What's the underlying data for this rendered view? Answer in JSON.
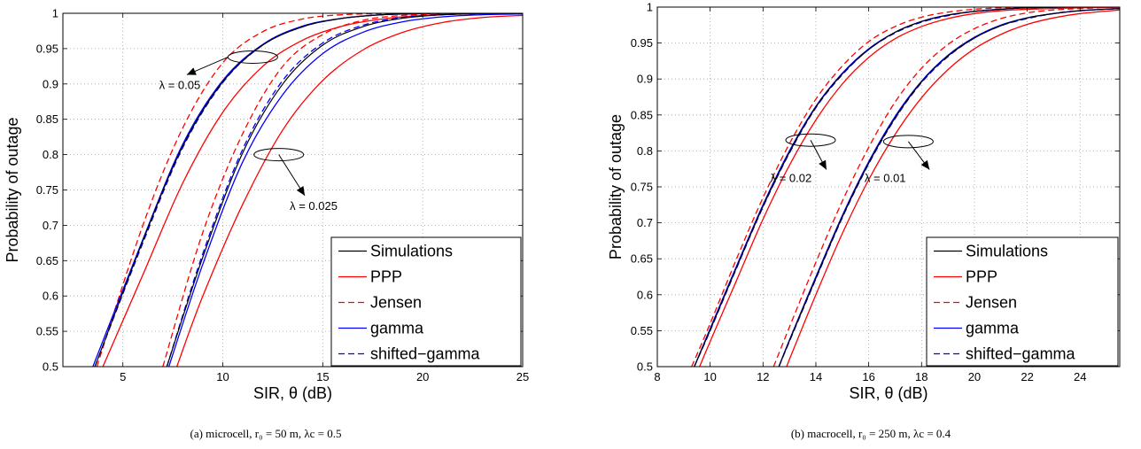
{
  "chart_data": [
    {
      "type": "line",
      "caption": "(a) microcell, r₀ = 50 m, λc = 0.5",
      "xlabel": "SIR, θ (dB)",
      "ylabel": "Probability of outage",
      "xlim": [
        2,
        25
      ],
      "ylim": [
        0.5,
        1
      ],
      "xticks": [
        5,
        10,
        15,
        20,
        25
      ],
      "yticks": [
        0.5,
        0.55,
        0.6,
        0.65,
        0.7,
        0.75,
        0.8,
        0.85,
        0.9,
        0.95,
        1
      ],
      "grid": true,
      "legend": {
        "position": "bottom-right",
        "entries": [
          {
            "label": "Simulations",
            "color": "#000000",
            "dash": "solid"
          },
          {
            "label": "PPP",
            "color": "#ff0000",
            "dash": "solid"
          },
          {
            "label": "Jensen",
            "color": "#ff0000",
            "dash": "dashed"
          },
          {
            "label": "gamma",
            "color": "#0000ff",
            "dash": "solid"
          },
          {
            "label": "shifted−gamma",
            "color": "#0000ff",
            "dash": "dashed"
          }
        ]
      },
      "annotations": [
        {
          "text": "λ = 0.05",
          "ellipse": [
            11.5,
            0.938
          ],
          "arrow_to": [
            8.2,
            0.913
          ]
        },
        {
          "text": "λ = 0.025",
          "ellipse": [
            12.8,
            0.8
          ],
          "arrow_to": [
            14.1,
            0.742
          ]
        }
      ],
      "series": [
        {
          "group": "λ = 0.05",
          "legend": "Jensen",
          "color": "#ff0000",
          "dash": "dashed",
          "width": 1.3,
          "x": [
            3.7,
            6,
            8,
            10,
            12,
            14,
            16,
            18,
            20,
            22,
            24,
            25
          ],
          "y": [
            0.5,
            0.7,
            0.838,
            0.93,
            0.974,
            0.992,
            0.998,
            0.9995,
            1,
            1,
            1,
            1
          ]
        },
        {
          "group": "λ = 0.05",
          "legend": "gamma",
          "color": "#0000ff",
          "dash": "solid",
          "width": 1.3,
          "x": [
            3.5,
            6,
            8,
            10,
            12,
            14,
            16,
            18,
            20,
            22,
            24,
            25
          ],
          "y": [
            0.5,
            0.68,
            0.815,
            0.905,
            0.956,
            0.982,
            0.993,
            0.998,
            0.9995,
            1,
            1,
            1
          ]
        },
        {
          "group": "λ = 0.05",
          "legend": "shifted−gamma",
          "color": "#0000ff",
          "dash": "dashed",
          "width": 1.3,
          "x": [
            3.6,
            6,
            8,
            10,
            12,
            14,
            16,
            18,
            20,
            22,
            24,
            25
          ],
          "y": [
            0.5,
            0.675,
            0.81,
            0.902,
            0.955,
            0.981,
            0.993,
            0.998,
            0.9995,
            1,
            1,
            1
          ]
        },
        {
          "group": "λ = 0.05",
          "legend": "Simulations",
          "color": "#000000",
          "dash": "solid",
          "width": 1.2,
          "x": [
            3.6,
            6,
            8,
            10,
            12,
            14,
            16,
            18,
            20,
            22,
            24,
            25
          ],
          "y": [
            0.5,
            0.678,
            0.812,
            0.903,
            0.955,
            0.981,
            0.993,
            0.998,
            0.9995,
            1,
            1,
            1
          ]
        },
        {
          "group": "λ = 0.05",
          "legend": "PPP",
          "color": "#ff0000",
          "dash": "solid",
          "width": 1.3,
          "x": [
            4.0,
            6,
            8,
            10,
            12,
            14,
            16,
            18,
            20,
            22,
            24,
            25
          ],
          "y": [
            0.5,
            0.63,
            0.76,
            0.86,
            0.925,
            0.962,
            0.982,
            0.992,
            0.997,
            0.999,
            1,
            1
          ]
        },
        {
          "group": "λ = 0.025",
          "legend": "Jensen",
          "color": "#ff0000",
          "dash": "dashed",
          "width": 1.3,
          "x": [
            7.0,
            9,
            11,
            13,
            15,
            17,
            19,
            21,
            23,
            25
          ],
          "y": [
            0.5,
            0.69,
            0.83,
            0.925,
            0.97,
            0.99,
            0.997,
            0.999,
            1,
            1
          ]
        },
        {
          "group": "λ = 0.025",
          "legend": "gamma",
          "color": "#0000ff",
          "dash": "solid",
          "width": 1.3,
          "x": [
            7.3,
            9,
            11,
            13,
            15,
            17,
            19,
            21,
            23,
            25
          ],
          "y": [
            0.5,
            0.645,
            0.79,
            0.885,
            0.943,
            0.973,
            0.988,
            0.995,
            0.998,
            0.999
          ]
        },
        {
          "group": "λ = 0.025",
          "legend": "shifted−gamma",
          "color": "#0000ff",
          "dash": "dashed",
          "width": 1.3,
          "x": [
            7.2,
            9,
            11,
            13,
            15,
            17,
            19,
            21,
            23,
            25
          ],
          "y": [
            0.5,
            0.66,
            0.808,
            0.905,
            0.958,
            0.983,
            0.994,
            0.998,
            0.9995,
            1
          ]
        },
        {
          "group": "λ = 0.025",
          "legend": "Simulations",
          "color": "#000000",
          "dash": "solid",
          "width": 1.2,
          "x": [
            7.2,
            9,
            11,
            13,
            15,
            17,
            19,
            21,
            23,
            25
          ],
          "y": [
            0.5,
            0.655,
            0.803,
            0.9,
            0.955,
            0.981,
            0.993,
            0.998,
            0.9995,
            1
          ]
        },
        {
          "group": "λ = 0.025",
          "legend": "PPP",
          "color": "#ff0000",
          "dash": "solid",
          "width": 1.3,
          "x": [
            7.7,
            9,
            11,
            13,
            15,
            17,
            19,
            21,
            23,
            25
          ],
          "y": [
            0.5,
            0.6,
            0.73,
            0.835,
            0.905,
            0.948,
            0.973,
            0.987,
            0.994,
            0.997
          ]
        }
      ]
    },
    {
      "type": "line",
      "caption": "(b) macrocell, r₀ = 250 m, λc = 0.4",
      "xlabel": "SIR, θ (dB)",
      "ylabel": "Probability of outage",
      "xlim": [
        8,
        25.5
      ],
      "ylim": [
        0.5,
        1
      ],
      "xticks": [
        8,
        10,
        12,
        14,
        16,
        18,
        20,
        22,
        24
      ],
      "yticks": [
        0.5,
        0.55,
        0.6,
        0.65,
        0.7,
        0.75,
        0.8,
        0.85,
        0.9,
        0.95,
        1
      ],
      "grid": true,
      "legend": {
        "position": "bottom-right",
        "entries": [
          {
            "label": "Simulations",
            "color": "#000000",
            "dash": "solid"
          },
          {
            "label": "PPP",
            "color": "#ff0000",
            "dash": "solid"
          },
          {
            "label": "Jensen",
            "color": "#ff0000",
            "dash": "dashed"
          },
          {
            "label": "gamma",
            "color": "#0000ff",
            "dash": "solid"
          },
          {
            "label": "shifted−gamma",
            "color": "#0000ff",
            "dash": "dashed"
          }
        ]
      },
      "annotations": [
        {
          "text": "λ = 0.02",
          "ellipse": [
            13.8,
            0.815
          ],
          "arrow_to": [
            14.4,
            0.774
          ]
        },
        {
          "text": "λ = 0.01",
          "ellipse": [
            17.5,
            0.813
          ],
          "arrow_to": [
            18.3,
            0.774
          ]
        }
      ],
      "series": [
        {
          "group": "λ = 0.02",
          "legend": "Jensen",
          "color": "#ff0000",
          "dash": "dashed",
          "width": 1.3,
          "x": [
            9.3,
            10,
            11,
            12,
            13,
            14,
            15,
            16,
            17,
            18,
            19,
            20,
            21,
            22,
            24,
            25.5
          ],
          "y": [
            0.5,
            0.56,
            0.65,
            0.735,
            0.81,
            0.872,
            0.918,
            0.952,
            0.973,
            0.986,
            0.993,
            0.997,
            0.999,
            1,
            1,
            1
          ]
        },
        {
          "group": "λ = 0.02",
          "legend": "gamma",
          "color": "#0000ff",
          "dash": "solid",
          "width": 1.3,
          "x": [
            9.4,
            10,
            11,
            12,
            13,
            14,
            15,
            16,
            17,
            18,
            19,
            20,
            21,
            22,
            24,
            25.5
          ],
          "y": [
            0.5,
            0.553,
            0.64,
            0.725,
            0.8,
            0.862,
            0.908,
            0.942,
            0.965,
            0.98,
            0.989,
            0.994,
            0.997,
            0.999,
            1,
            1
          ]
        },
        {
          "group": "λ = 0.02",
          "legend": "shifted−gamma",
          "color": "#0000ff",
          "dash": "dashed",
          "width": 1.3,
          "x": [
            9.4,
            10,
            11,
            12,
            13,
            14,
            15,
            16,
            17,
            18,
            19,
            20,
            21,
            22,
            24,
            25.5
          ],
          "y": [
            0.5,
            0.55,
            0.637,
            0.722,
            0.797,
            0.86,
            0.906,
            0.941,
            0.964,
            0.979,
            0.988,
            0.994,
            0.997,
            0.999,
            1,
            1
          ]
        },
        {
          "group": "λ = 0.02",
          "legend": "Simulations",
          "color": "#000000",
          "dash": "solid",
          "width": 1.2,
          "x": [
            9.4,
            10,
            11,
            12,
            13,
            14,
            15,
            16,
            17,
            18,
            19,
            20,
            21,
            22,
            24,
            25.5
          ],
          "y": [
            0.5,
            0.551,
            0.638,
            0.723,
            0.798,
            0.861,
            0.907,
            0.941,
            0.965,
            0.98,
            0.989,
            0.994,
            0.997,
            0.999,
            1,
            1
          ]
        },
        {
          "group": "λ = 0.02",
          "legend": "PPP",
          "color": "#ff0000",
          "dash": "solid",
          "width": 1.3,
          "x": [
            9.6,
            10,
            11,
            12,
            13,
            14,
            15,
            16,
            17,
            18,
            19,
            20,
            21,
            22,
            24,
            25.5
          ],
          "y": [
            0.5,
            0.535,
            0.62,
            0.705,
            0.78,
            0.843,
            0.893,
            0.93,
            0.956,
            0.973,
            0.984,
            0.991,
            0.995,
            0.997,
            0.999,
            1
          ]
        },
        {
          "group": "λ = 0.01",
          "legend": "Jensen",
          "color": "#ff0000",
          "dash": "dashed",
          "width": 1.3,
          "x": [
            12.4,
            13,
            14,
            15,
            16,
            17,
            18,
            19,
            20,
            21,
            22,
            23,
            24,
            25.5
          ],
          "y": [
            0.5,
            0.555,
            0.645,
            0.73,
            0.805,
            0.868,
            0.915,
            0.948,
            0.97,
            0.984,
            0.992,
            0.996,
            0.998,
            1
          ]
        },
        {
          "group": "λ = 0.01",
          "legend": "gamma",
          "color": "#0000ff",
          "dash": "solid",
          "width": 1.3,
          "x": [
            12.6,
            13,
            14,
            15,
            16,
            17,
            18,
            19,
            20,
            21,
            22,
            23,
            24,
            25.5
          ],
          "y": [
            0.5,
            0.537,
            0.625,
            0.71,
            0.785,
            0.848,
            0.897,
            0.933,
            0.958,
            0.975,
            0.985,
            0.991,
            0.995,
            0.998
          ]
        },
        {
          "group": "λ = 0.01",
          "legend": "shifted−gamma",
          "color": "#0000ff",
          "dash": "dashed",
          "width": 1.3,
          "x": [
            12.6,
            13,
            14,
            15,
            16,
            17,
            18,
            19,
            20,
            21,
            22,
            23,
            24,
            25.5
          ],
          "y": [
            0.5,
            0.535,
            0.622,
            0.707,
            0.782,
            0.845,
            0.895,
            0.931,
            0.957,
            0.974,
            0.984,
            0.991,
            0.995,
            0.998
          ]
        },
        {
          "group": "λ = 0.01",
          "legend": "Simulations",
          "color": "#000000",
          "dash": "solid",
          "width": 1.2,
          "x": [
            12.6,
            13,
            14,
            15,
            16,
            17,
            18,
            19,
            20,
            21,
            22,
            23,
            24,
            25.5
          ],
          "y": [
            0.5,
            0.536,
            0.623,
            0.708,
            0.783,
            0.846,
            0.896,
            0.932,
            0.957,
            0.974,
            0.985,
            0.991,
            0.995,
            0.998
          ]
        },
        {
          "group": "λ = 0.01",
          "legend": "PPP",
          "color": "#ff0000",
          "dash": "solid",
          "width": 1.3,
          "x": [
            12.9,
            13,
            14,
            15,
            16,
            17,
            18,
            19,
            20,
            21,
            22,
            23,
            24,
            25.5
          ],
          "y": [
            0.5,
            0.51,
            0.6,
            0.685,
            0.76,
            0.823,
            0.874,
            0.913,
            0.942,
            0.962,
            0.976,
            0.985,
            0.991,
            0.996
          ]
        }
      ]
    }
  ]
}
